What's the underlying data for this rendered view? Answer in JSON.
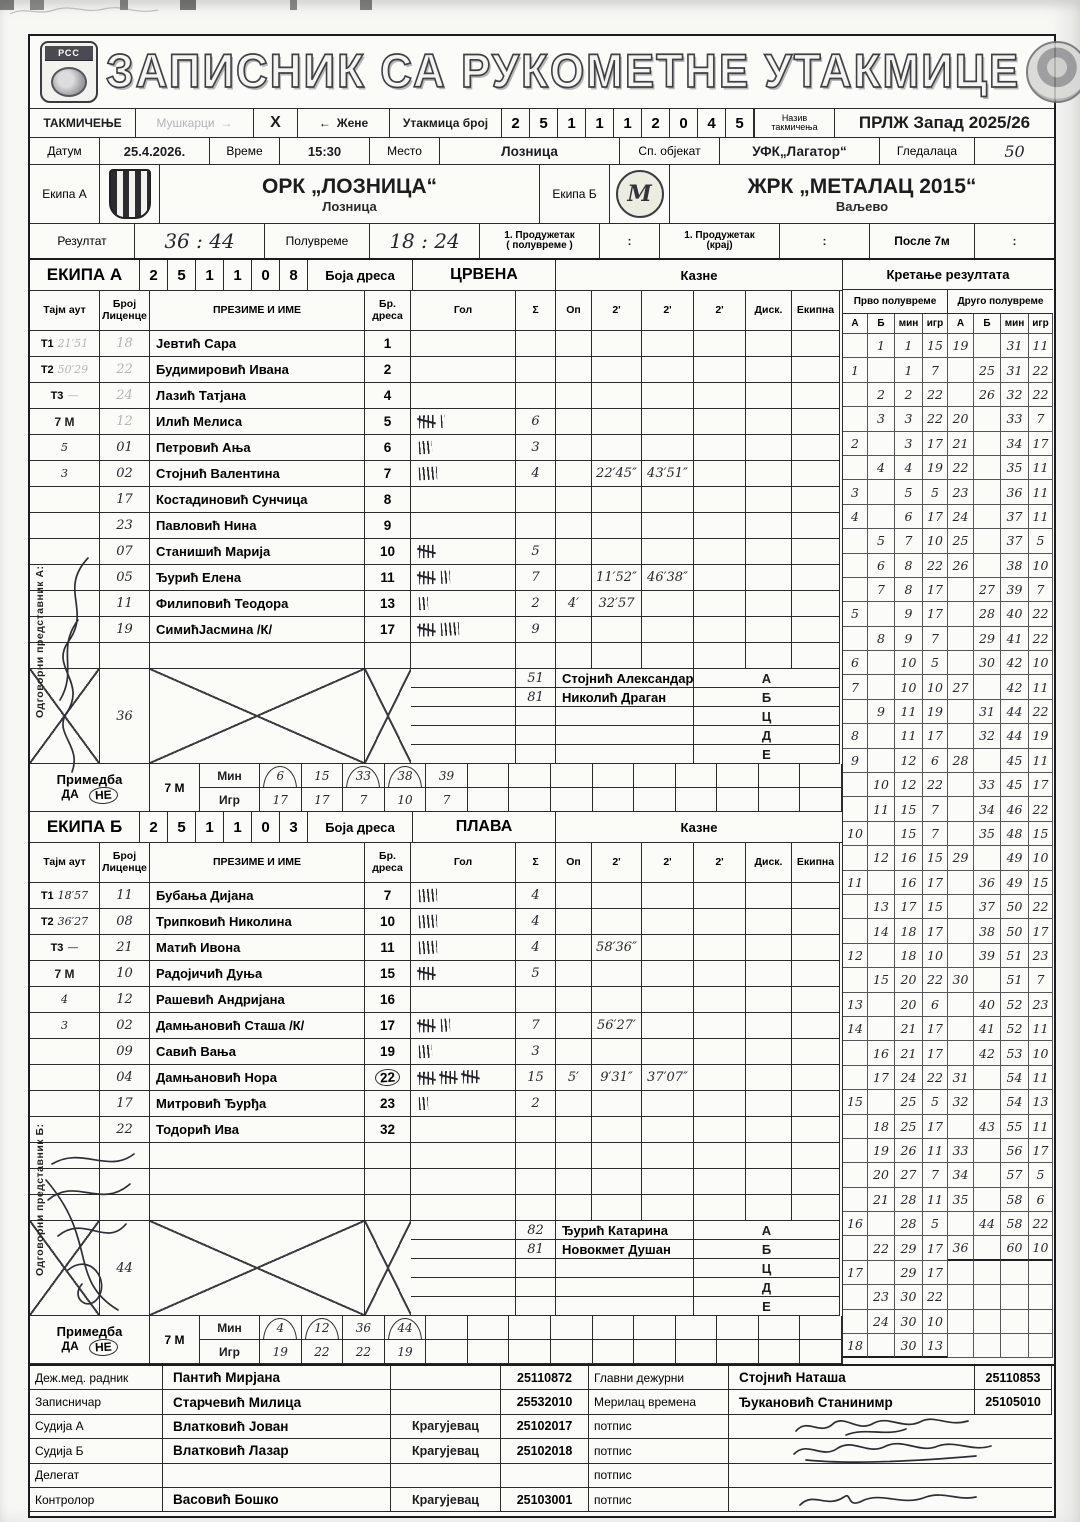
{
  "header": {
    "title": "ЗАПИСНИК СА РУКОМЕТНЕ УТАКМИЦЕ",
    "left_logo_text": "РСС"
  },
  "row2": {
    "competition_label": "ТАКМИЧЕЊЕ",
    "men": "Мушкарци",
    "arrow_right": "→",
    "x_mark": "X",
    "arrow_left": "←",
    "women": "Жене",
    "match_no_label": "Утакмица број",
    "match_no_digits": [
      "2",
      "5",
      "1",
      "1",
      "1",
      "2",
      "0",
      "4",
      "5"
    ],
    "name_label": "Назив\nтакмичења",
    "league": "ПРЛЖ Запад 2025/26"
  },
  "row3": {
    "date_label": "Датум",
    "date": "25.4.2026.",
    "time_label": "Време",
    "time": "15:30",
    "place_label": "Место",
    "place": "Лозница",
    "venue_label": "Сп. објекат",
    "venue": "УФК„Лагатор“",
    "spectators_label": "Гледалаца",
    "spectators": "50"
  },
  "teams": {
    "a_label": "Екипа А",
    "a_name": "ОРК „ЛОЗНИЦА“",
    "a_city": "Лозница",
    "b_label": "Екипа Б",
    "b_name": "ЖРК „МЕТАЛАЦ 2015“",
    "b_city": "Ваљево"
  },
  "result": {
    "label": "Резултат",
    "value": "36 : 44",
    "half_label": "Полувреме",
    "half_value": "18 : 24",
    "ot1_label": "1. Продужетак\n( полувреме )",
    "ot1_value": ":",
    "ot2_label": "1. Продужетак\n(крај)",
    "ot2_value": ":",
    "p7_label": "После 7м",
    "p7_value": ":"
  },
  "player_table_columns": [
    "Тајм аут",
    "Број\nЛиценце",
    "ПРЕЗИМЕ И ИМЕ",
    "Бр.\nдреса",
    "Гол",
    "Σ",
    "Оп",
    "2'",
    "2'",
    "2'",
    "Диск.",
    "Екипна"
  ],
  "team_a": {
    "band": {
      "label": "ЕКИПА А",
      "digits": [
        "2",
        "5",
        "1",
        "1",
        "0",
        "8"
      ],
      "color_label": "Боја дреса",
      "color_value": "ЦРВЕНА",
      "penalties_label": "Казне"
    },
    "rep_label": "Одговорни представник А:",
    "players": [
      {
        "to": {
          "label": "Т1",
          "value": "21′51",
          "faint": true
        },
        "lic": "18",
        "lic_faint": true,
        "name": "Јевтић Сара",
        "jersey": "1",
        "goals": 0,
        "sum": ""
      },
      {
        "to": {
          "label": "Т2",
          "value": "50′29",
          "faint": true
        },
        "lic": "22",
        "lic_faint": true,
        "name": "Будимировић Ивана",
        "jersey": "2",
        "goals": 0,
        "sum": ""
      },
      {
        "to": {
          "label": "Т3",
          "value": "—",
          "faint": true
        },
        "lic": "24",
        "lic_faint": true,
        "name": "Лазић Татјана",
        "jersey": "4",
        "goals": 0,
        "sum": ""
      },
      {
        "to": {
          "label": "7 М"
        },
        "lic": "12",
        "lic_faint": true,
        "name": "Илић Мелиса",
        "jersey": "5",
        "goals": 6,
        "sum": "6"
      },
      {
        "to": {
          "value": "5"
        },
        "lic": "01",
        "name": "Петровић Ања",
        "jersey": "6",
        "goals": 3,
        "sum": "3"
      },
      {
        "to": {
          "value": "3"
        },
        "lic": "02",
        "name": "Стојнић Валентина",
        "jersey": "7",
        "goals": 4,
        "sum": "4",
        "p2a": "22′45″",
        "p2b": "43′51″"
      },
      {
        "lic": "17",
        "name": "Костадиновић Сунчица",
        "jersey": "8",
        "goals": 0,
        "sum": ""
      },
      {
        "lic": "23",
        "name": "Павловић Нина",
        "jersey": "9",
        "goals": 0,
        "sum": ""
      },
      {
        "lic": "07",
        "name": "Станишић Марија",
        "jersey": "10",
        "goals": 5,
        "sum": "5"
      },
      {
        "lic": "05",
        "name": "Ђурић Елена",
        "jersey": "11",
        "goals": 7,
        "sum": "7",
        "p2a": "11′52″",
        "p2b": "46′38″"
      },
      {
        "lic": "11",
        "name": "Филиповић Теодора",
        "jersey": "13",
        "goals": 2,
        "sum": "2",
        "op": "4′",
        "p2a": "32′57"
      },
      {
        "lic": "19",
        "name": "СимићЈасмина /К/",
        "jersey": "17",
        "goals": 9,
        "sum": "9"
      },
      {}
    ],
    "officials": {
      "rows": [
        {
          "lic": "51",
          "name": "Стојнић Александар",
          "letter": "А"
        },
        {
          "lic": "81",
          "name": "Николић Драган",
          "letter": "Б"
        },
        {
          "letter": "Ц"
        },
        {
          "letter": "Д"
        },
        {
          "letter": "Е"
        }
      ],
      "goal_cross": true,
      "total": "36",
      "pen_cross": [
        true,
        true
      ]
    },
    "remark": {
      "label": "Примедба",
      "yes": "ДА",
      "no": "НЕ",
      "no_circled": true,
      "seven_m": "7 М",
      "min_label": "Мин",
      "igr_label": "Игр",
      "min": [
        "6",
        "15",
        "33",
        "38",
        "39"
      ],
      "igr": [
        "17",
        "17",
        "7",
        "10",
        "7"
      ],
      "circled_pairs": [
        0,
        2,
        3
      ]
    }
  },
  "team_b": {
    "band": {
      "label": "ЕКИПА Б",
      "digits": [
        "2",
        "5",
        "1",
        "1",
        "0",
        "3"
      ],
      "color_label": "Боја дреса",
      "color_value": "ПЛАВА",
      "penalties_label": "Казне"
    },
    "rep_label": "Одговорни представник Б:",
    "players": [
      {
        "to": {
          "label": "Т1",
          "value": "18′57"
        },
        "lic": "11",
        "name": "Бубања Дијана",
        "jersey": "7",
        "goals": 4,
        "sum": "4"
      },
      {
        "to": {
          "label": "Т2",
          "value": "36′27"
        },
        "lic": "08",
        "name": "Трипковић Николина",
        "jersey": "10",
        "goals": 4,
        "sum": "4"
      },
      {
        "to": {
          "label": "Т3",
          "value": "—"
        },
        "lic": "21",
        "name": "Матић Ивона",
        "jersey": "11",
        "goals": 4,
        "sum": "4",
        "p2a": "58′36″"
      },
      {
        "to": {
          "label": "7 М"
        },
        "lic": "10",
        "name": "Радојичић Дуња",
        "jersey": "15",
        "goals": 5,
        "sum": "5"
      },
      {
        "to": {
          "value": "4"
        },
        "lic": "12",
        "name": "Рашевић Андријана",
        "jersey": "16",
        "goals": 0,
        "sum": ""
      },
      {
        "to": {
          "value": "3"
        },
        "lic": "02",
        "name": "Дамњановић Сташа /К/",
        "jersey": "17",
        "goals": 7,
        "sum": "7",
        "p2a": "56′27′"
      },
      {
        "lic": "09",
        "name": "Савић Вања",
        "jersey": "19",
        "goals": 3,
        "sum": "3"
      },
      {
        "lic": "04",
        "name": "Дамњановић Нора",
        "jersey": "22",
        "jersey_circled": true,
        "goals": 15,
        "sum": "15",
        "op": "5′",
        "p2a": "9′31″",
        "p2b": "37′07″"
      },
      {
        "lic": "17",
        "name": "Митровић Ђурђа",
        "jersey": "23",
        "goals": 2,
        "sum": "2"
      },
      {
        "lic": "22",
        "name": "Тодорић Ива",
        "jersey": "32",
        "goals": 0,
        "sum": ""
      },
      {},
      {},
      {}
    ],
    "officials": {
      "rows": [
        {
          "lic": "82",
          "name": "Ђурић Катарина",
          "letter": "А"
        },
        {
          "lic": "81",
          "name": "Новокмет Душан",
          "letter": "Б"
        },
        {
          "letter": "Ц"
        },
        {
          "letter": "Д"
        },
        {
          "letter": "Е"
        }
      ],
      "goal_cross": true,
      "total": "44",
      "pen_cross": [
        true,
        true
      ]
    },
    "remark": {
      "label": "Примедба",
      "yes": "ДА",
      "no": "НЕ",
      "no_circled": true,
      "seven_m": "7 М",
      "min_label": "Мин",
      "igr_label": "Игр",
      "min": [
        "4",
        "12",
        "36",
        "44"
      ],
      "igr": [
        "19",
        "22",
        "22",
        "19"
      ],
      "circled_pairs": [
        0,
        1,
        3
      ]
    }
  },
  "score_table": {
    "title": "Кретање резултата",
    "half1": "Прво полувреме",
    "half2": "Друго полувреме",
    "cols": [
      "А",
      "Б",
      "мин",
      "игр",
      "А",
      "Б",
      "мин",
      "игр"
    ],
    "rows": [
      [
        "",
        "1",
        "1",
        "15",
        "19",
        "",
        "31",
        "11"
      ],
      [
        "1",
        "",
        "1",
        "7",
        "",
        "25",
        "31",
        "22"
      ],
      [
        "",
        "2",
        "2",
        "22",
        "",
        "26",
        "32",
        "22"
      ],
      [
        "",
        "3",
        "3",
        "22",
        "20",
        "",
        "33",
        "7"
      ],
      [
        "2",
        "",
        "3",
        "17",
        "21",
        "",
        "34",
        "17"
      ],
      [
        "",
        "4",
        "4",
        "19",
        "22",
        "",
        "35",
        "11"
      ],
      [
        "3",
        "",
        "5",
        "5",
        "23",
        "",
        "36",
        "11"
      ],
      [
        "4",
        "",
        "6",
        "17",
        "24",
        "",
        "37",
        "11"
      ],
      [
        "",
        "5",
        "7",
        "10",
        "25",
        "",
        "37",
        "5"
      ],
      [
        "",
        "6",
        "8",
        "22",
        "26",
        "",
        "38",
        "10"
      ],
      [
        "",
        "7",
        "8",
        "17",
        "",
        "27",
        "39",
        "7"
      ],
      [
        "5",
        "",
        "9",
        "17",
        "",
        "28",
        "40",
        "22"
      ],
      [
        "",
        "8",
        "9",
        "7",
        "",
        "29",
        "41",
        "22"
      ],
      [
        "6",
        "",
        "10",
        "5",
        "",
        "30",
        "42",
        "10"
      ],
      [
        "7",
        "",
        "10",
        "10",
        "27",
        "",
        "42",
        "11"
      ],
      [
        "",
        "9",
        "11",
        "19",
        "",
        "31",
        "44",
        "22"
      ],
      [
        "8",
        "",
        "11",
        "17",
        "",
        "32",
        "44",
        "19"
      ],
      [
        "9",
        "",
        "12",
        "6",
        "28",
        "",
        "45",
        "11"
      ],
      [
        "",
        "10",
        "12",
        "22",
        "",
        "33",
        "45",
        "17"
      ],
      [
        "",
        "11",
        "15",
        "7",
        "",
        "34",
        "46",
        "22"
      ],
      [
        "10",
        "",
        "15",
        "7",
        "",
        "35",
        "48",
        "15"
      ],
      [
        "",
        "12",
        "16",
        "15",
        "29",
        "",
        "49",
        "10"
      ],
      [
        "11",
        "",
        "16",
        "17",
        "",
        "36",
        "49",
        "15"
      ],
      [
        "",
        "13",
        "17",
        "15",
        "",
        "37",
        "50",
        "22"
      ],
      [
        "",
        "14",
        "18",
        "17",
        "",
        "38",
        "50",
        "17"
      ],
      [
        "12",
        "",
        "18",
        "10",
        "",
        "39",
        "51",
        "23"
      ],
      [
        "",
        "15",
        "20",
        "22",
        "30",
        "",
        "51",
        "7"
      ],
      [
        "13",
        "",
        "20",
        "6",
        "",
        "40",
        "52",
        "23"
      ],
      [
        "14",
        "",
        "21",
        "17",
        "",
        "41",
        "52",
        "11"
      ],
      [
        "",
        "16",
        "21",
        "17",
        "",
        "42",
        "53",
        "10"
      ],
      [
        "",
        "17",
        "24",
        "22",
        "31",
        "",
        "54",
        "11"
      ],
      [
        "15",
        "",
        "25",
        "5",
        "32",
        "",
        "54",
        "13"
      ],
      [
        "",
        "18",
        "25",
        "17",
        "",
        "43",
        "55",
        "11"
      ],
      [
        "",
        "19",
        "26",
        "11",
        "33",
        "",
        "56",
        "17"
      ],
      [
        "",
        "20",
        "27",
        "7",
        "34",
        "",
        "57",
        "5"
      ],
      [
        "",
        "21",
        "28",
        "11",
        "35",
        "",
        "58",
        "6"
      ],
      [
        "16",
        "",
        "28",
        "5",
        "",
        "44",
        "58",
        "22"
      ],
      [
        "",
        "22",
        "29",
        "17",
        "36",
        "",
        "60",
        "10"
      ],
      [
        "17",
        "",
        "29",
        "17",
        "",
        "",
        "",
        ""
      ],
      [
        "",
        "23",
        "30",
        "22",
        "",
        "",
        "",
        ""
      ],
      [
        "",
        "24",
        "30",
        "10",
        "",
        "",
        "",
        ""
      ],
      [
        "18",
        "",
        "30",
        "13",
        "",
        "",
        "",
        ""
      ]
    ],
    "underline_first_after": 41,
    "underline_second_after": 37
  },
  "bottom": {
    "rows": [
      {
        "role": "Деж.мед. радник",
        "name": "Пантић Мирјана",
        "city": "",
        "id": "25110872",
        "rlabel": "Главни дежурни",
        "rname": "Стојнић Наташа",
        "rid": "25110853"
      },
      {
        "role": "Записничар",
        "name": "Старчевић Милица",
        "city": "",
        "id": "25532010",
        "rlabel": "Мерилац времена",
        "rname": "Ђукановић Станинимр",
        "rid": "25105010"
      },
      {
        "role": "Судија А",
        "name": "Влатковић Јован",
        "city": "Крагујевац",
        "id": "25102017",
        "rlabel": "потпис",
        "sig": true
      },
      {
        "role": "Судија Б",
        "name": "Влатковић Лазар",
        "city": "Крагујевац",
        "id": "25102018",
        "rlabel": "потпис",
        "sig": true
      },
      {
        "role": "Делегат",
        "name": "",
        "city": "",
        "id": "",
        "rlabel": "потпис",
        "sig": false
      },
      {
        "role": "Контролор",
        "name": "Васовић Бошко",
        "city": "Крагујевац",
        "id": "25103001",
        "rlabel": "потпис",
        "sig": true
      }
    ]
  }
}
